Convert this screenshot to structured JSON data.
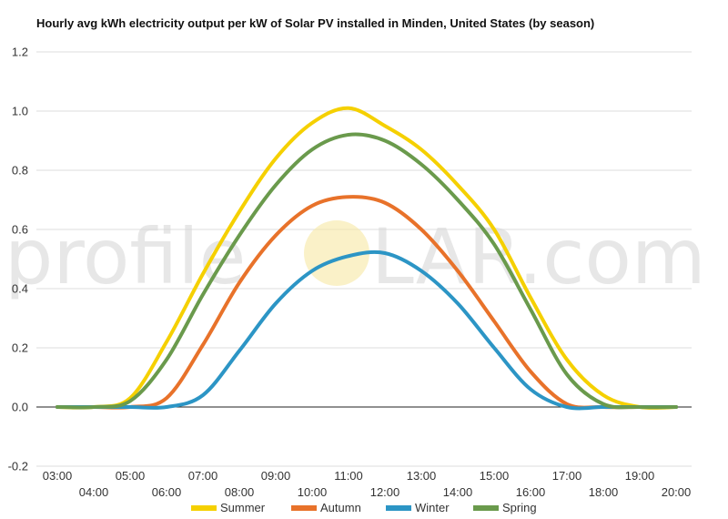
{
  "chart_data": {
    "type": "line",
    "title": "Hourly avg kWh electricity output per kW of Solar PV installed in Minden, United States (by season)",
    "xlabel": "",
    "ylabel": "",
    "ylim": [
      -0.2,
      1.2
    ],
    "yticks": [
      "-0.2",
      "0.0",
      "0.2",
      "0.4",
      "0.6",
      "0.8",
      "1.0",
      "1.2"
    ],
    "ytick_values": [
      -0.2,
      0,
      0.2,
      0.4,
      0.6,
      0.8,
      1.0,
      1.2
    ],
    "x": [
      "03:00",
      "04:00",
      "05:00",
      "06:00",
      "07:00",
      "08:00",
      "09:00",
      "10:00",
      "11:00",
      "12:00",
      "13:00",
      "14:00",
      "15:00",
      "16:00",
      "17:00",
      "18:00",
      "19:00",
      "20:00"
    ],
    "grid": true,
    "legend_position": "bottom",
    "series": [
      {
        "name": "Summer",
        "color": "#f5d000",
        "values": [
          0,
          0,
          0.03,
          0.22,
          0.45,
          0.66,
          0.84,
          0.96,
          1.01,
          0.95,
          0.87,
          0.75,
          0.6,
          0.37,
          0.16,
          0.04,
          0,
          0
        ]
      },
      {
        "name": "Autumn",
        "color": "#e8722a",
        "values": [
          0,
          0,
          0,
          0.03,
          0.21,
          0.42,
          0.58,
          0.68,
          0.71,
          0.69,
          0.6,
          0.46,
          0.29,
          0.12,
          0.01,
          0,
          0,
          0
        ]
      },
      {
        "name": "Winter",
        "color": "#2c95c5",
        "values": [
          0,
          0,
          0,
          0,
          0.04,
          0.19,
          0.35,
          0.46,
          0.51,
          0.52,
          0.46,
          0.35,
          0.2,
          0.06,
          0,
          0,
          0,
          0
        ]
      },
      {
        "name": "Spring",
        "color": "#6a9a4c",
        "values": [
          0,
          0,
          0.02,
          0.16,
          0.38,
          0.58,
          0.75,
          0.87,
          0.92,
          0.9,
          0.82,
          0.7,
          0.55,
          0.33,
          0.11,
          0.01,
          0,
          0
        ]
      }
    ]
  },
  "watermark": {
    "left": "profile",
    "right": "LAR.com",
    "sun_color": "#f6e7a3"
  }
}
